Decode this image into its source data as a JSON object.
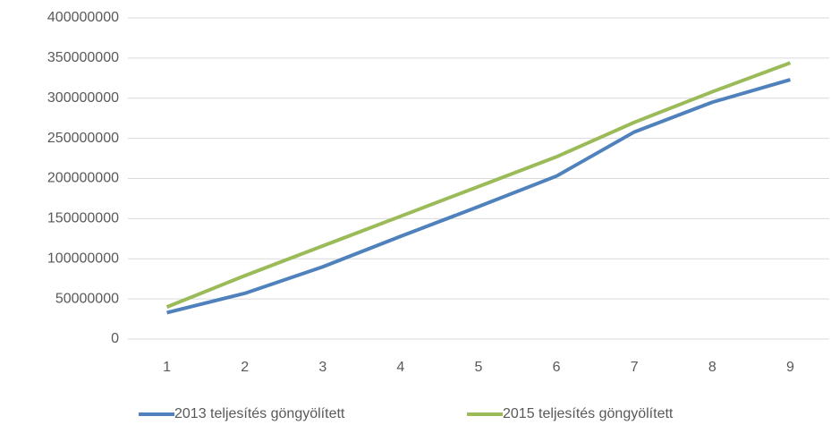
{
  "chart_data": {
    "type": "line",
    "categories": [
      "1",
      "2",
      "3",
      "4",
      "5",
      "6",
      "7",
      "8",
      "9"
    ],
    "series": [
      {
        "name": "2013 teljesítés göngyölített",
        "color": "#4f81bd",
        "values": [
          33000000,
          57000000,
          90000000,
          128000000,
          165000000,
          203000000,
          258000000,
          295000000,
          323000000
        ]
      },
      {
        "name": "2015 teljesítés göngyölített",
        "color": "#9bbb59",
        "values": [
          40000000,
          79000000,
          116000000,
          153000000,
          190000000,
          227000000,
          270000000,
          308000000,
          344000000
        ]
      }
    ],
    "ylim": [
      0,
      400000000
    ],
    "yticks": [
      0,
      50000000,
      100000000,
      150000000,
      200000000,
      250000000,
      300000000,
      350000000,
      400000000
    ],
    "grid": true,
    "legend": "bottom"
  }
}
